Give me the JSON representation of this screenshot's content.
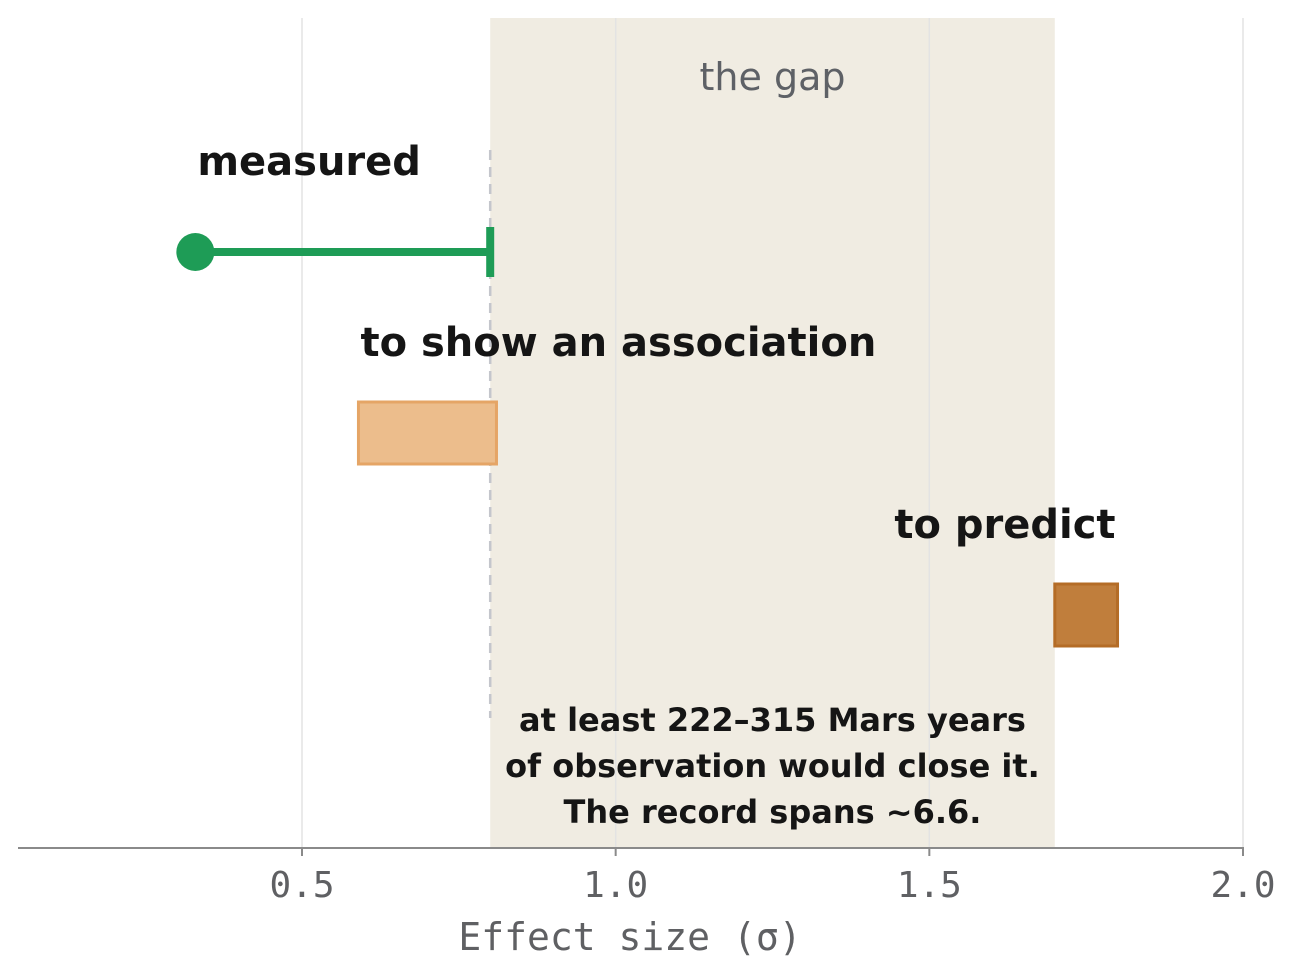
{
  "chart_data": {
    "type": "interval",
    "xlabel": "Effect size (σ)",
    "xlim": [
      0.05,
      2.0
    ],
    "xticks": [
      0.5,
      1.0,
      1.5,
      2.0
    ],
    "xtick_labels": [
      "0.5",
      "1.0",
      "1.5",
      "2.0"
    ],
    "grid": "vertical",
    "gap_region": {
      "label": "the gap",
      "from": 0.8,
      "to": 1.7,
      "color": "#f0ece2"
    },
    "threshold": 0.8,
    "rows": [
      {
        "label": "measured",
        "kind": "point-range",
        "point": 0.33,
        "from": 0.33,
        "to": 0.8,
        "color": "#1e9c56"
      },
      {
        "label": "to show an association",
        "kind": "range",
        "from": 0.59,
        "to": 0.81,
        "color": "#ecbd8c"
      },
      {
        "label": "to predict",
        "kind": "range",
        "from": 1.7,
        "to": 1.8,
        "color": "#c07e3c"
      }
    ],
    "annotation": [
      "at least 222–315 Mars years",
      "of observation would close it.",
      "The record spans ~6.6."
    ]
  }
}
